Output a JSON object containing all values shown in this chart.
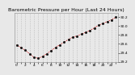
{
  "title": "Barometric Pressure per Hour (Last 24 Hours)",
  "hours": [
    0,
    1,
    2,
    3,
    4,
    5,
    6,
    7,
    8,
    9,
    10,
    11,
    12,
    13,
    14,
    15,
    16,
    17,
    18,
    19,
    20,
    21,
    22,
    23
  ],
  "pressure": [
    29.58,
    29.52,
    29.46,
    29.38,
    29.3,
    29.28,
    29.32,
    29.38,
    29.45,
    29.52,
    29.58,
    29.64,
    29.7,
    29.75,
    29.78,
    29.82,
    29.86,
    29.9,
    29.96,
    30.02,
    30.06,
    30.1,
    30.14,
    30.2
  ],
  "line_color": "#cc0000",
  "marker_color": "#111111",
  "grid_color": "#bbbbbb",
  "bg_color": "#e8e8e8",
  "plot_bg": "#e8e8e8",
  "ylim_min": 29.2,
  "ylim_max": 30.3,
  "title_fontsize": 4.5,
  "tick_fontsize": 3.2,
  "ytick_vals": [
    29.2,
    29.4,
    29.6,
    29.8,
    30.0,
    30.2
  ],
  "ytick_labels": [
    "29.2",
    "29.4",
    "29.6",
    "29.8",
    "30.0",
    "30.2"
  ]
}
